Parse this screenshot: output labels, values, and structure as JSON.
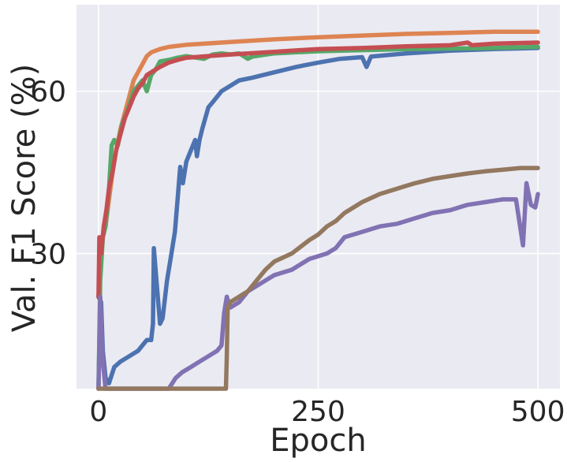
{
  "chart_data": {
    "type": "line",
    "title": "",
    "xlabel": "Epoch",
    "ylabel": "Val. F1 Score (%)",
    "xlim": [
      -25,
      525
    ],
    "ylim": [
      5,
      76
    ],
    "xticks": [
      0,
      250,
      500
    ],
    "yticks": [
      30,
      60
    ],
    "xtick_labels": [
      "0",
      "250",
      "500"
    ],
    "ytick_labels": [
      "30",
      "60"
    ],
    "grid": true,
    "legend": "none",
    "background": "#eaeaf2",
    "series": [
      {
        "color": "#4c72b0",
        "points": [
          [
            0,
            22
          ],
          [
            3,
            21
          ],
          [
            5,
            12
          ],
          [
            8,
            7
          ],
          [
            12,
            6
          ],
          [
            18,
            9
          ],
          [
            25,
            10
          ],
          [
            35,
            11
          ],
          [
            45,
            12
          ],
          [
            50,
            13
          ],
          [
            55,
            14
          ],
          [
            60,
            14
          ],
          [
            62,
            17
          ],
          [
            63,
            31
          ],
          [
            66,
            25
          ],
          [
            70,
            17
          ],
          [
            73,
            18
          ],
          [
            78,
            25
          ],
          [
            83,
            30
          ],
          [
            87,
            34
          ],
          [
            90,
            40
          ],
          [
            93,
            46
          ],
          [
            96,
            43
          ],
          [
            100,
            47
          ],
          [
            105,
            49
          ],
          [
            110,
            51
          ],
          [
            112,
            48
          ],
          [
            115,
            51
          ],
          [
            118,
            53
          ],
          [
            125,
            57
          ],
          [
            130,
            58
          ],
          [
            140,
            60
          ],
          [
            150,
            61
          ],
          [
            160,
            62
          ],
          [
            175,
            62.5
          ],
          [
            200,
            63.5
          ],
          [
            225,
            64.5
          ],
          [
            250,
            65.3
          ],
          [
            275,
            66
          ],
          [
            300,
            66.3
          ],
          [
            305,
            64.5
          ],
          [
            310,
            66.4
          ],
          [
            350,
            67
          ],
          [
            400,
            67.5
          ],
          [
            450,
            67.8
          ],
          [
            500,
            68
          ]
        ]
      },
      {
        "color": "#dd8452",
        "points": [
          [
            0,
            22
          ],
          [
            2,
            28
          ],
          [
            5,
            33
          ],
          [
            8,
            35
          ],
          [
            12,
            40
          ],
          [
            16,
            45
          ],
          [
            20,
            49
          ],
          [
            25,
            53
          ],
          [
            30,
            56
          ],
          [
            35,
            59
          ],
          [
            40,
            62
          ],
          [
            45,
            63.5
          ],
          [
            50,
            65
          ],
          [
            55,
            66.5
          ],
          [
            60,
            67.2
          ],
          [
            70,
            67.8
          ],
          [
            80,
            68.2
          ],
          [
            100,
            68.6
          ],
          [
            150,
            69.1
          ],
          [
            200,
            69.6
          ],
          [
            250,
            70
          ],
          [
            300,
            70.3
          ],
          [
            350,
            70.6
          ],
          [
            400,
            70.8
          ],
          [
            450,
            71
          ],
          [
            500,
            71
          ]
        ]
      },
      {
        "color": "#55a868",
        "points": [
          [
            0,
            5
          ],
          [
            2,
            25
          ],
          [
            5,
            33
          ],
          [
            8,
            35
          ],
          [
            12,
            42
          ],
          [
            15,
            50
          ],
          [
            18,
            51
          ],
          [
            22,
            50
          ],
          [
            27,
            54
          ],
          [
            32,
            56
          ],
          [
            36,
            58
          ],
          [
            40,
            60
          ],
          [
            45,
            61
          ],
          [
            50,
            62
          ],
          [
            55,
            60
          ],
          [
            60,
            63
          ],
          [
            65,
            64
          ],
          [
            70,
            65.5
          ],
          [
            80,
            65.8
          ],
          [
            90,
            66.2
          ],
          [
            100,
            66.5
          ],
          [
            120,
            66
          ],
          [
            130,
            66.8
          ],
          [
            140,
            67
          ],
          [
            150,
            66.8
          ],
          [
            160,
            67
          ],
          [
            170,
            66
          ],
          [
            175,
            66.4
          ],
          [
            200,
            67
          ],
          [
            250,
            67.4
          ],
          [
            300,
            67.6
          ],
          [
            350,
            67.8
          ],
          [
            400,
            67.9
          ],
          [
            450,
            68
          ],
          [
            500,
            68.2
          ]
        ]
      },
      {
        "color": "#c44e52",
        "points": [
          [
            0,
            22
          ],
          [
            1,
            33
          ],
          [
            3,
            30
          ],
          [
            6,
            35
          ],
          [
            9,
            38
          ],
          [
            12,
            42
          ],
          [
            16,
            45
          ],
          [
            20,
            49
          ],
          [
            25,
            52
          ],
          [
            30,
            55
          ],
          [
            35,
            57
          ],
          [
            40,
            59
          ],
          [
            45,
            60.5
          ],
          [
            50,
            61.5
          ],
          [
            55,
            63
          ],
          [
            60,
            63.5
          ],
          [
            70,
            64.5
          ],
          [
            80,
            65.3
          ],
          [
            90,
            65.8
          ],
          [
            100,
            66.2
          ],
          [
            150,
            66.8
          ],
          [
            200,
            67.3
          ],
          [
            250,
            67.8
          ],
          [
            300,
            68
          ],
          [
            350,
            68.3
          ],
          [
            400,
            68.5
          ],
          [
            420,
            69
          ],
          [
            425,
            68.5
          ],
          [
            450,
            68.8
          ],
          [
            500,
            69
          ]
        ]
      },
      {
        "color": "#8172b3",
        "points": [
          [
            0,
            5
          ],
          [
            2,
            22
          ],
          [
            5,
            10
          ],
          [
            8,
            5
          ],
          [
            80,
            5
          ],
          [
            88,
            7
          ],
          [
            95,
            8
          ],
          [
            105,
            9
          ],
          [
            115,
            10
          ],
          [
            125,
            11
          ],
          [
            135,
            12
          ],
          [
            140,
            13
          ],
          [
            143,
            19
          ],
          [
            146,
            22
          ],
          [
            150,
            20
          ],
          [
            160,
            21
          ],
          [
            170,
            23
          ],
          [
            180,
            24
          ],
          [
            190,
            25
          ],
          [
            200,
            26
          ],
          [
            220,
            27
          ],
          [
            240,
            29
          ],
          [
            250,
            29.5
          ],
          [
            260,
            30
          ],
          [
            270,
            31
          ],
          [
            280,
            33
          ],
          [
            300,
            34
          ],
          [
            320,
            35
          ],
          [
            340,
            35.5
          ],
          [
            360,
            36.5
          ],
          [
            380,
            37.5
          ],
          [
            400,
            38
          ],
          [
            420,
            39
          ],
          [
            440,
            39.5
          ],
          [
            460,
            40
          ],
          [
            475,
            40
          ],
          [
            483,
            31.5
          ],
          [
            487,
            43
          ],
          [
            492,
            39
          ],
          [
            497,
            38.5
          ],
          [
            500,
            41
          ]
        ]
      },
      {
        "color": "#937860",
        "points": [
          [
            0,
            5
          ],
          [
            2,
            5
          ],
          [
            145,
            5
          ],
          [
            146,
            11
          ],
          [
            147,
            20
          ],
          [
            150,
            21
          ],
          [
            160,
            22
          ],
          [
            170,
            23
          ],
          [
            180,
            25
          ],
          [
            190,
            27
          ],
          [
            200,
            28.5
          ],
          [
            220,
            30
          ],
          [
            240,
            32.5
          ],
          [
            250,
            33.5
          ],
          [
            260,
            35
          ],
          [
            270,
            36
          ],
          [
            280,
            37.5
          ],
          [
            300,
            39.5
          ],
          [
            320,
            41
          ],
          [
            340,
            42
          ],
          [
            360,
            43
          ],
          [
            380,
            43.8
          ],
          [
            400,
            44.3
          ],
          [
            420,
            44.8
          ],
          [
            440,
            45.2
          ],
          [
            460,
            45.5
          ],
          [
            480,
            45.8
          ],
          [
            500,
            45.8
          ]
        ]
      }
    ]
  }
}
